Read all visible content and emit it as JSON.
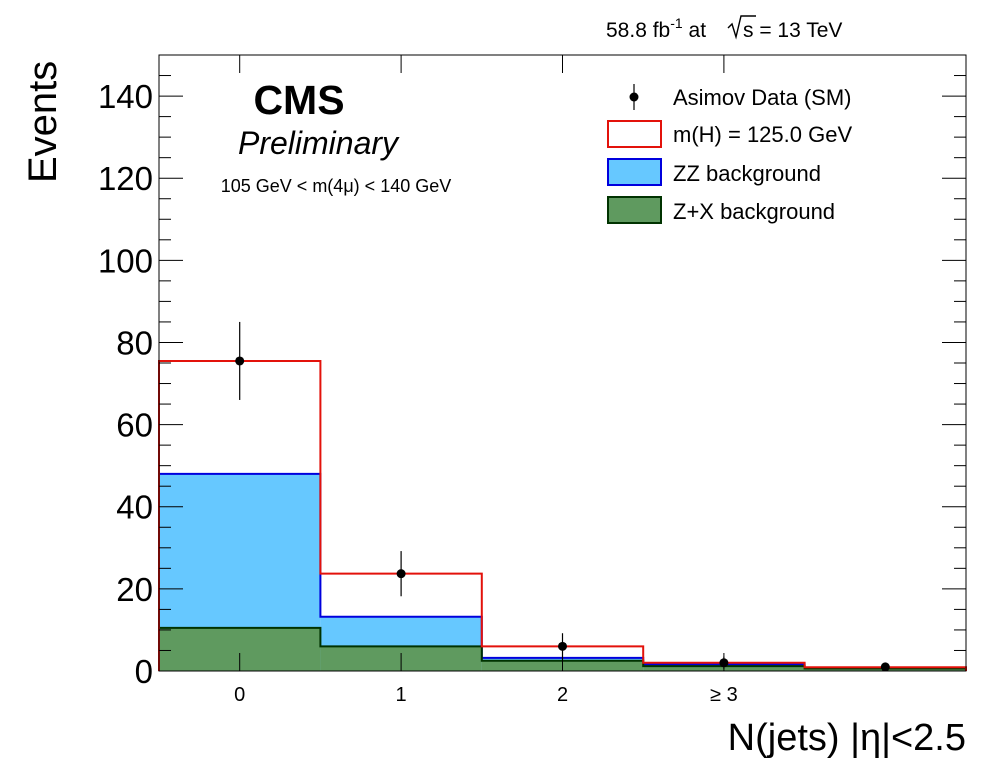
{
  "chart_data": {
    "type": "histogram",
    "lumi_label": "58.8 fb",
    "lumi_sup": "-1",
    "lumi_at": " at ",
    "energy_label": "s = 13 TeV",
    "cms_label": "CMS",
    "prelim_label": "Preliminary",
    "cut_label": "105 GeV < m(4μ) < 140 GeV",
    "xlabel": "N(jets) |η|<2.5",
    "ylabel": "Events",
    "ylim": [
      0,
      150
    ],
    "y_ticks": [
      0,
      20,
      40,
      60,
      80,
      100,
      120,
      140
    ],
    "x_range": [
      -0.5,
      4.5
    ],
    "bin_edges": [
      -0.5,
      0.5,
      1.5,
      2.5,
      3.5,
      4.5
    ],
    "x_ticks": [
      {
        "x": 0,
        "label": "0"
      },
      {
        "x": 1,
        "label": "1"
      },
      {
        "x": 2,
        "label": "2"
      },
      {
        "x": 3,
        "label": "≥ 3"
      }
    ],
    "legend": [
      {
        "label": "Asimov Data (SM)",
        "kind": "marker"
      },
      {
        "label": "m(H) = 125.0 GeV",
        "kind": "line",
        "color": "#e3120b"
      },
      {
        "label": "ZZ background",
        "kind": "fill",
        "color": "#66c8ff",
        "edge": "#0000dd"
      },
      {
        "label": "Z+X background",
        "kind": "fill",
        "color": "#5f9a5f",
        "edge": "#003300"
      }
    ],
    "series": [
      {
        "name": "Z+X background",
        "values": [
          10.5,
          6.0,
          2.5,
          1.2,
          0.6
        ],
        "color": "#5f9a5f",
        "edge": "#003300"
      },
      {
        "name": "ZZ background",
        "values": [
          48.0,
          13.2,
          3.2,
          1.6,
          0.8
        ],
        "color": "#66c8ff",
        "edge": "#0000dd"
      },
      {
        "name": "m(H) = 125.0 GeV",
        "values": [
          75.5,
          23.7,
          6.0,
          2.0,
          0.9
        ],
        "color": "#e3120b"
      }
    ],
    "data_points": {
      "name": "Asimov Data (SM)",
      "x": [
        0,
        1,
        2,
        3,
        4
      ],
      "y": [
        75.5,
        23.7,
        6.0,
        2.0,
        1.0
      ],
      "err_low": [
        9.5,
        5.5,
        3.2,
        1.5,
        1.0
      ],
      "err_high": [
        9.5,
        5.5,
        3.2,
        1.5,
        1.0
      ]
    }
  }
}
